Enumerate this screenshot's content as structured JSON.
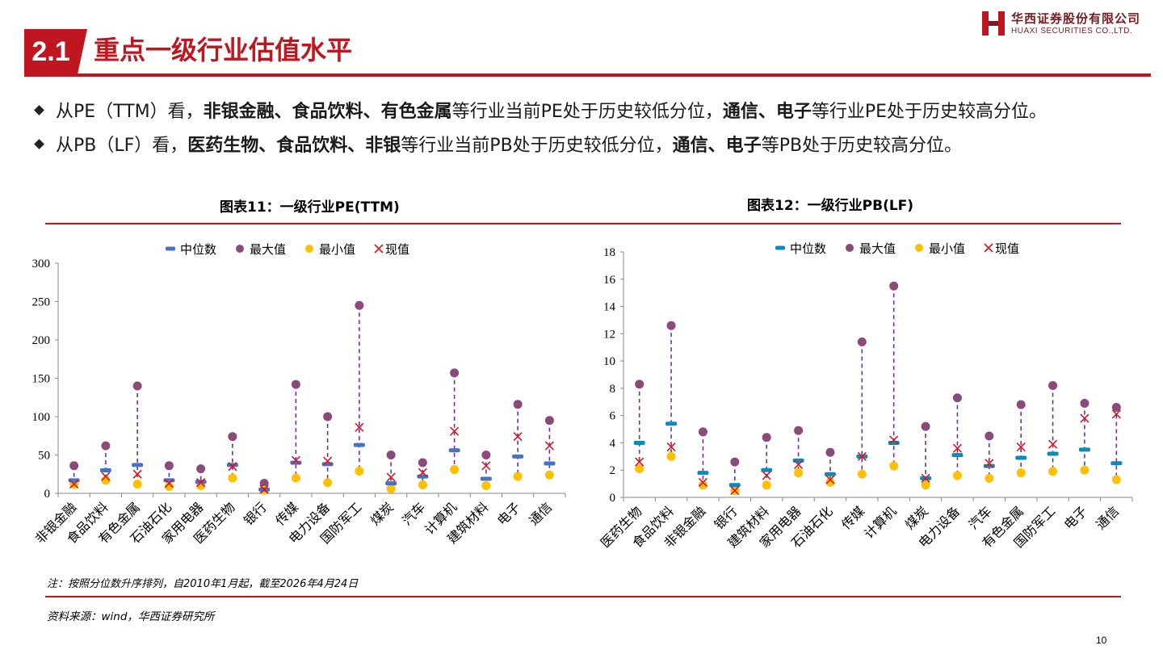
{
  "section": {
    "number": "2.1",
    "title": "重点一级行业估值水平"
  },
  "logo": {
    "cn": "华西证券股份有限公司",
    "en": "HUAXI SECURITIES CO.,LTD."
  },
  "bullets": [
    {
      "parts": [
        {
          "t": "从PE（TTM）看，",
          "b": false
        },
        {
          "t": "非银金融、食品饮料、有色金属",
          "b": true
        },
        {
          "t": "等行业当前PE处于历史较低分位，",
          "b": false
        },
        {
          "t": "通信、电子",
          "b": true
        },
        {
          "t": "等行业PE处于历史较高分位。",
          "b": false
        }
      ]
    },
    {
      "parts": [
        {
          "t": "从PB（LF）看，",
          "b": false
        },
        {
          "t": "医药生物、食品饮料、非银",
          "b": true
        },
        {
          "t": "等行业当前PB处于历史较低分位，",
          "b": false
        },
        {
          "t": "通信、电子",
          "b": true
        },
        {
          "t": "等PB处于历史较高分位。",
          "b": false
        }
      ]
    }
  ],
  "chart_titles": {
    "pe": "图表11：一级行业PE(TTM)",
    "pb": "图表12：一级行业PB(LF)"
  },
  "note": "注：按照分位数升序排列，自2010年1月起，截至2026年4月24日",
  "source": "资料来源：wind，华西证券研究所",
  "page_number": "10",
  "colors": {
    "brand_red": "#c0161f",
    "median_pe": "#4472c4",
    "median_pb": "#0b8bb8",
    "max": "#8b4a7a",
    "min": "#ffc000",
    "current": "#e0141e",
    "range_line": "#7030a0"
  },
  "chart_data": [
    {
      "id": "pe",
      "type": "scatter",
      "title": "图表11：一级行业PE(TTM)",
      "legend": [
        "中位数",
        "最大值",
        "最小值",
        "现值"
      ],
      "legend_position": "top",
      "ylim": [
        0,
        300
      ],
      "yticks": [
        0,
        50,
        100,
        150,
        200,
        250,
        300
      ],
      "grid": false,
      "categories": [
        "非银金融",
        "食品饮料",
        "有色金属",
        "石油石化",
        "家用电器",
        "医药生物",
        "银行",
        "传媒",
        "电力设备",
        "国防军工",
        "煤炭",
        "汽车",
        "计算机",
        "建筑材料",
        "电子",
        "通信"
      ],
      "series": [
        {
          "name": "中位数",
          "values": [
            17,
            30,
            37,
            17,
            15,
            37,
            5,
            40,
            38,
            63,
            13,
            22,
            56,
            19,
            48,
            39
          ]
        },
        {
          "name": "最大值",
          "values": [
            36,
            62,
            140,
            36,
            32,
            74,
            13,
            142,
            100,
            245,
            50,
            40,
            157,
            50,
            116,
            95
          ]
        },
        {
          "name": "最小值",
          "values": [
            12,
            17,
            12,
            9,
            10,
            20,
            4,
            20,
            14,
            29,
            6,
            11,
            31,
            10,
            22,
            24
          ]
        },
        {
          "name": "现值",
          "values": [
            12,
            22,
            25,
            13,
            14,
            35,
            5,
            43,
            42,
            86,
            21,
            27,
            81,
            36,
            74,
            62
          ]
        }
      ]
    },
    {
      "id": "pb",
      "type": "scatter",
      "title": "图表12：一级行业PB(LF)",
      "legend": [
        "中位数",
        "最大值",
        "最小值",
        "现值"
      ],
      "legend_position": "top",
      "ylim": [
        0,
        18
      ],
      "yticks": [
        0,
        2,
        4,
        6,
        8,
        10,
        12,
        14,
        16,
        18
      ],
      "grid": false,
      "categories": [
        "医药生物",
        "食品饮料",
        "非银金融",
        "银行",
        "建筑材料",
        "家用电器",
        "石油石化",
        "传媒",
        "计算机",
        "煤炭",
        "电力设备",
        "汽车",
        "有色金属",
        "国防军工",
        "电子",
        "通信"
      ],
      "series": [
        {
          "name": "中位数",
          "values": [
            4.0,
            5.4,
            1.8,
            0.9,
            2.0,
            2.7,
            1.7,
            3.0,
            4.0,
            1.4,
            3.1,
            2.3,
            2.9,
            3.2,
            3.5,
            2.5
          ]
        },
        {
          "name": "最大值",
          "values": [
            8.3,
            12.6,
            4.8,
            2.6,
            4.4,
            4.9,
            3.3,
            11.4,
            15.5,
            5.2,
            7.3,
            4.5,
            6.8,
            8.2,
            6.9,
            6.6
          ]
        },
        {
          "name": "最小值",
          "values": [
            2.1,
            3.0,
            0.9,
            0.5,
            0.9,
            1.8,
            1.1,
            1.7,
            2.3,
            0.9,
            1.6,
            1.4,
            1.8,
            1.9,
            2.0,
            1.3
          ]
        },
        {
          "name": "现值",
          "values": [
            2.6,
            3.7,
            1.1,
            0.5,
            1.6,
            2.4,
            1.3,
            3.0,
            4.2,
            1.4,
            3.6,
            2.5,
            3.7,
            3.9,
            5.8,
            6.1
          ]
        }
      ]
    }
  ]
}
